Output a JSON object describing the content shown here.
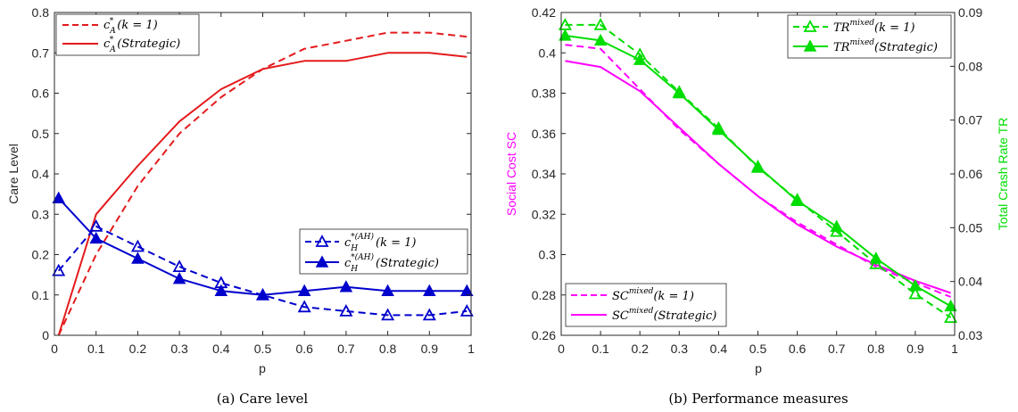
{
  "chart_data": [
    {
      "type": "line",
      "caption": "(a) Care level",
      "xlabel": "p",
      "ylabel": "Care Level",
      "xlim": [
        0,
        1
      ],
      "ylim": [
        0,
        0.8
      ],
      "x_ticks": [
        "0",
        "0.1",
        "0.2",
        "0.3",
        "0.4",
        "0.5",
        "0.6",
        "0.7",
        "0.8",
        "0.9",
        "1"
      ],
      "y_ticks": [
        "0",
        "0.1",
        "0.2",
        "0.3",
        "0.4",
        "0.5",
        "0.6",
        "0.7",
        "0.8"
      ],
      "grid": false,
      "legends": [
        {
          "placement": "top-left",
          "entries": [
            "cA*(k = 1)",
            "cA*(Strategic)"
          ]
        },
        {
          "placement": "middle-right",
          "entries": [
            "cH*(AH)(k = 1)",
            "cH*(AH)(Strategic)"
          ]
        }
      ],
      "series": [
        {
          "name": "cA*(k = 1)",
          "color": "#e41a1c",
          "dash": "dashed",
          "marker": "none",
          "x": [
            0.01,
            0.1,
            0.2,
            0.3,
            0.4,
            0.5,
            0.6,
            0.7,
            0.8,
            0.9,
            0.99
          ],
          "values": [
            0.0,
            0.2,
            0.37,
            0.5,
            0.59,
            0.66,
            0.71,
            0.73,
            0.75,
            0.75,
            0.74
          ]
        },
        {
          "name": "cA*(Strategic)",
          "color": "#e41a1c",
          "dash": "solid",
          "marker": "none",
          "x": [
            0.01,
            0.1,
            0.2,
            0.3,
            0.4,
            0.5,
            0.6,
            0.7,
            0.8,
            0.9,
            0.99
          ],
          "values": [
            0.0,
            0.3,
            0.42,
            0.53,
            0.61,
            0.66,
            0.68,
            0.68,
            0.7,
            0.7,
            0.69
          ]
        },
        {
          "name": "cH*(AH)(k = 1)",
          "color": "#0000cc",
          "dash": "dashed",
          "marker": "triangle-open",
          "x": [
            0.01,
            0.1,
            0.2,
            0.3,
            0.4,
            0.5,
            0.6,
            0.7,
            0.8,
            0.9,
            0.99
          ],
          "values": [
            0.16,
            0.27,
            0.22,
            0.17,
            0.13,
            0.1,
            0.07,
            0.06,
            0.05,
            0.05,
            0.06
          ]
        },
        {
          "name": "cH*(AH)(Strategic)",
          "color": "#0000cc",
          "dash": "solid",
          "marker": "triangle-filled",
          "x": [
            0.01,
            0.1,
            0.2,
            0.3,
            0.4,
            0.5,
            0.6,
            0.7,
            0.8,
            0.9,
            0.99
          ],
          "values": [
            0.34,
            0.24,
            0.19,
            0.14,
            0.11,
            0.1,
            0.11,
            0.12,
            0.11,
            0.11,
            0.11
          ]
        }
      ]
    },
    {
      "type": "line",
      "caption": "(b) Performance measures",
      "xlabel": "p",
      "ylabel": "Social Cost SC",
      "ylabel_color": "#ff00ff",
      "y2label": "Total Crash Rate TR",
      "y2label_color": "#00dd00",
      "xlim": [
        0,
        1
      ],
      "ylim": [
        0.26,
        0.42
      ],
      "y2lim": [
        0.03,
        0.09
      ],
      "x_ticks": [
        "0",
        "0.1",
        "0.2",
        "0.3",
        "0.4",
        "0.5",
        "0.6",
        "0.7",
        "0.8",
        "0.9",
        "1"
      ],
      "y_ticks": [
        "0.26",
        "0.28",
        "0.3",
        "0.32",
        "0.34",
        "0.36",
        "0.38",
        "0.4",
        "0.42"
      ],
      "y2_ticks": [
        "0.03",
        "0.04",
        "0.05",
        "0.06",
        "0.07",
        "0.08",
        "0.09"
      ],
      "grid": false,
      "legends": [
        {
          "placement": "top-right",
          "entries": [
            "TRmixed(k = 1)",
            "TRmixed(Strategic)"
          ]
        },
        {
          "placement": "bottom-left",
          "entries": [
            "SCmixed(k = 1)",
            "SCmixed(Strategic)"
          ]
        }
      ],
      "series": [
        {
          "name": "SCmixed(k = 1)",
          "axis": "left",
          "color": "#ff00ff",
          "dash": "dashed",
          "marker": "none",
          "x": [
            0.01,
            0.1,
            0.2,
            0.3,
            0.4,
            0.5,
            0.6,
            0.7,
            0.8,
            0.9,
            0.99
          ],
          "values": [
            0.404,
            0.402,
            0.382,
            0.362,
            0.345,
            0.329,
            0.316,
            0.305,
            0.294,
            0.286,
            0.279
          ]
        },
        {
          "name": "SCmixed(Strategic)",
          "axis": "left",
          "color": "#ff00ff",
          "dash": "solid",
          "marker": "none",
          "x": [
            0.01,
            0.1,
            0.2,
            0.3,
            0.4,
            0.5,
            0.6,
            0.7,
            0.8,
            0.9,
            0.99
          ],
          "values": [
            0.396,
            0.393,
            0.381,
            0.363,
            0.345,
            0.329,
            0.315,
            0.304,
            0.295,
            0.287,
            0.281
          ]
        },
        {
          "name": "TRmixed(k = 1)",
          "axis": "right",
          "color": "#00dd00",
          "dash": "dashed",
          "marker": "triangle-open",
          "x": [
            0.01,
            0.1,
            0.2,
            0.3,
            0.4,
            0.5,
            0.6,
            0.7,
            0.8,
            0.9,
            0.99
          ],
          "values": [
            0.0877,
            0.0877,
            0.0822,
            0.0752,
            0.0685,
            0.0612,
            0.0552,
            0.0493,
            0.0433,
            0.0377,
            0.0333
          ]
        },
        {
          "name": "TRmixed(Strategic)",
          "axis": "right",
          "color": "#00dd00",
          "dash": "solid",
          "marker": "triangle-filled",
          "x": [
            0.01,
            0.1,
            0.2,
            0.3,
            0.4,
            0.5,
            0.6,
            0.7,
            0.8,
            0.9,
            0.99
          ],
          "values": [
            0.0857,
            0.0848,
            0.0812,
            0.075,
            0.0682,
            0.0614,
            0.055,
            0.0502,
            0.0443,
            0.0392,
            0.0354
          ]
        }
      ]
    }
  ]
}
